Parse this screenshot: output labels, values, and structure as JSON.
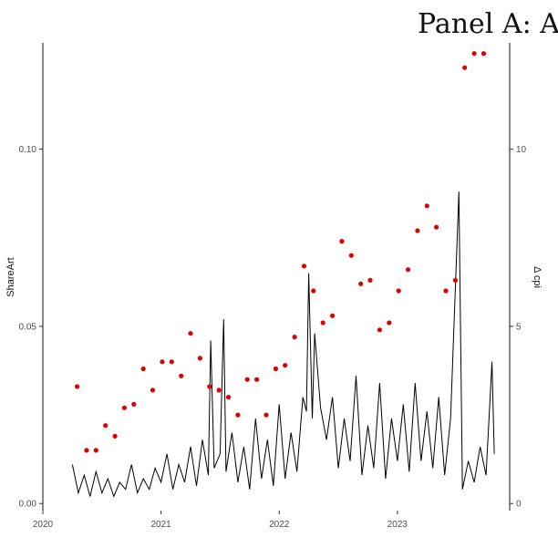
{
  "chart_data": {
    "type": "line",
    "title": "Panel A: A",
    "ylabel_left": "ShareArt",
    "ylabel_right": "Δ cpi",
    "x_ticks": [
      "2020",
      "2021",
      "2022",
      "2023"
    ],
    "x_tick_values": [
      2020.0,
      2021.0,
      2022.0,
      2023.0
    ],
    "xlim": [
      2020.0,
      2023.95
    ],
    "y_left_ticks": [
      "0.00",
      "0.05",
      "0.10"
    ],
    "y_left_tick_values": [
      0.0,
      0.05,
      0.1
    ],
    "ylim_left": [
      -0.002,
      0.13
    ],
    "y_right_ticks": [
      "0",
      "5",
      "10"
    ],
    "y_right_tick_values": [
      0,
      5,
      10
    ],
    "ylim_right": [
      -0.2,
      13.0
    ],
    "grid": false,
    "line_color": "#000000",
    "dot_color": "#e00000",
    "series": [
      {
        "style": "line",
        "axis": "left",
        "x": [
          2020.25,
          2020.3,
          2020.35,
          2020.4,
          2020.45,
          2020.5,
          2020.55,
          2020.6,
          2020.65,
          2020.7,
          2020.75,
          2020.8,
          2020.85,
          2020.9,
          2020.95,
          2021.0,
          2021.05,
          2021.1,
          2021.15,
          2021.2,
          2021.25,
          2021.3,
          2021.35,
          2021.4,
          2021.42,
          2021.45,
          2021.5,
          2021.53,
          2021.55,
          2021.6,
          2021.65,
          2021.7,
          2021.75,
          2021.8,
          2021.85,
          2021.9,
          2021.95,
          2022.0,
          2022.05,
          2022.1,
          2022.15,
          2022.2,
          2022.23,
          2022.25,
          2022.28,
          2022.3,
          2022.35,
          2022.4,
          2022.45,
          2022.5,
          2022.55,
          2022.6,
          2022.65,
          2022.7,
          2022.75,
          2022.8,
          2022.85,
          2022.9,
          2022.95,
          2023.0,
          2023.05,
          2023.1,
          2023.15,
          2023.2,
          2023.25,
          2023.3,
          2023.35,
          2023.4,
          2023.45,
          2023.52,
          2023.55,
          2023.6,
          2023.65,
          2023.7,
          2023.75,
          2023.8,
          2023.82
        ],
        "y": [
          0.011,
          0.003,
          0.008,
          0.002,
          0.009,
          0.003,
          0.007,
          0.002,
          0.006,
          0.004,
          0.011,
          0.003,
          0.007,
          0.004,
          0.01,
          0.006,
          0.014,
          0.004,
          0.011,
          0.006,
          0.016,
          0.005,
          0.018,
          0.008,
          0.046,
          0.01,
          0.014,
          0.052,
          0.009,
          0.02,
          0.006,
          0.016,
          0.004,
          0.024,
          0.007,
          0.018,
          0.005,
          0.028,
          0.007,
          0.02,
          0.009,
          0.03,
          0.026,
          0.065,
          0.024,
          0.048,
          0.027,
          0.018,
          0.03,
          0.01,
          0.024,
          0.012,
          0.036,
          0.008,
          0.022,
          0.01,
          0.034,
          0.007,
          0.024,
          0.012,
          0.028,
          0.009,
          0.034,
          0.012,
          0.026,
          0.01,
          0.03,
          0.008,
          0.024,
          0.088,
          0.004,
          0.012,
          0.006,
          0.016,
          0.008,
          0.04,
          0.014
        ]
      },
      {
        "style": "points",
        "axis": "left",
        "x": [
          2020.29,
          2020.37,
          2020.45,
          2020.53,
          2020.61,
          2020.69,
          2020.77,
          2020.85,
          2020.93,
          2021.01,
          2021.09,
          2021.17,
          2021.25,
          2021.33,
          2021.41,
          2021.49,
          2021.57,
          2021.65,
          2021.73,
          2021.81,
          2021.89,
          2021.97,
          2022.05,
          2022.13,
          2022.21,
          2022.29,
          2022.37,
          2022.45,
          2022.53,
          2022.61,
          2022.69,
          2022.77,
          2022.85,
          2022.93,
          2023.01,
          2023.09,
          2023.17,
          2023.25,
          2023.33,
          2023.41,
          2023.49,
          2023.57,
          2023.65,
          2023.73
        ],
        "y": [
          0.033,
          0.015,
          0.015,
          0.022,
          0.019,
          0.027,
          0.028,
          0.038,
          0.032,
          0.04,
          0.04,
          0.036,
          0.048,
          0.041,
          0.033,
          0.032,
          0.03,
          0.025,
          0.035,
          0.035,
          0.025,
          0.038,
          0.039,
          0.047,
          0.067,
          0.06,
          0.051,
          0.053,
          0.074,
          0.07,
          0.062,
          0.063,
          0.049,
          0.051,
          0.06,
          0.066,
          0.077,
          0.084,
          0.078,
          0.06,
          0.063,
          0.123,
          0.127,
          0.127
        ]
      }
    ]
  }
}
